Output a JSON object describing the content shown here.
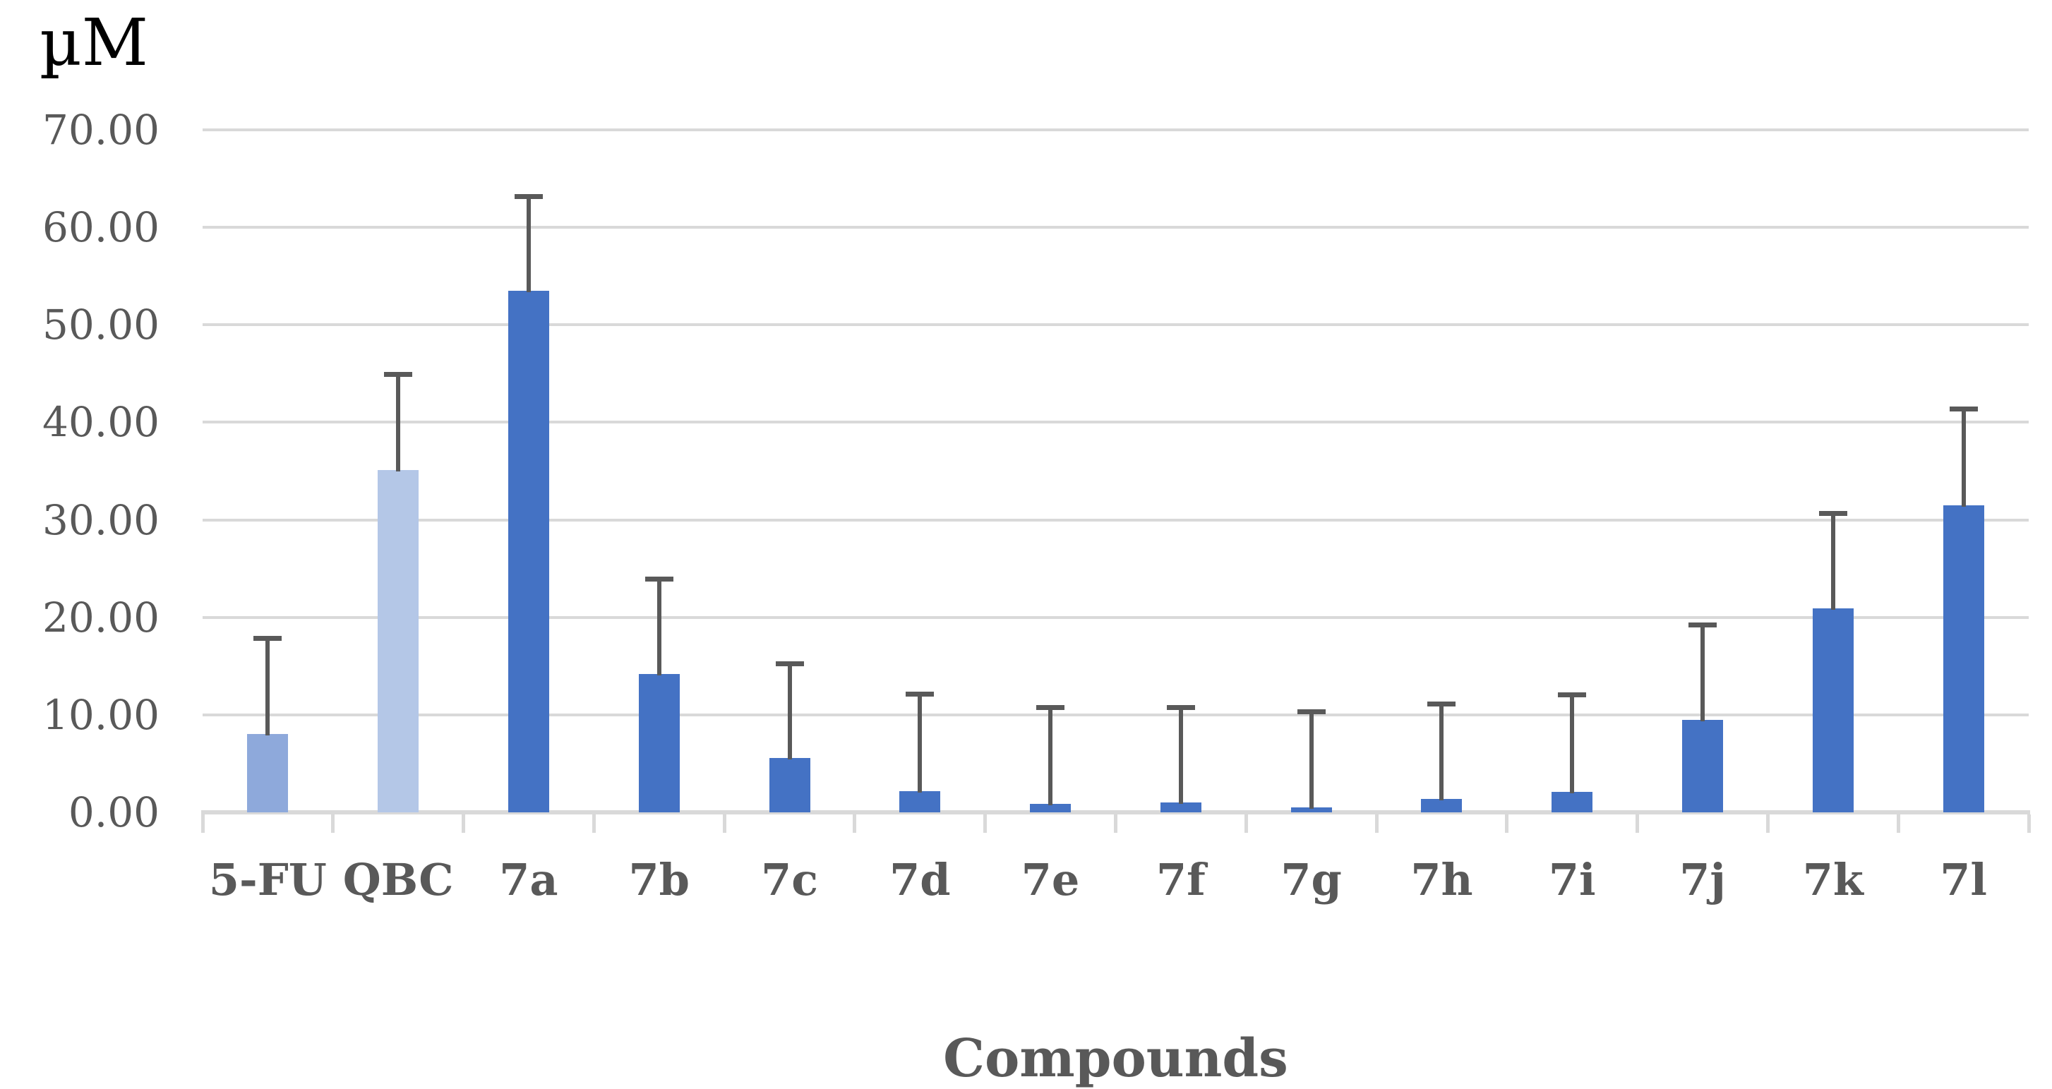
{
  "chart_data": {
    "type": "bar",
    "title": "",
    "ylabel": "µM",
    "xlabel": "Compounds",
    "categories": [
      "5-FU",
      "QBC",
      "7a",
      "7b",
      "7c",
      "7d",
      "7e",
      "7f",
      "7g",
      "7h",
      "7i",
      "7j",
      "7k",
      "7l"
    ],
    "values": [
      8.0,
      35.1,
      53.5,
      14.2,
      5.6,
      2.2,
      0.9,
      1.0,
      0.5,
      1.4,
      2.1,
      9.5,
      20.9,
      31.5
    ],
    "errors_up": [
      10.1,
      10.1,
      9.9,
      10.0,
      9.9,
      10.2,
      10.1,
      10.0,
      10.1,
      10.0,
      10.2,
      10.0,
      10.0,
      10.1
    ],
    "error_bars": "upper-only",
    "bar_styles": [
      "light",
      "lighter",
      "primary",
      "primary",
      "primary",
      "primary",
      "primary",
      "primary",
      "primary",
      "primary",
      "primary",
      "primary",
      "primary",
      "primary"
    ],
    "ytick_labels": [
      "70.00",
      "60.00",
      "50.00",
      "40.00",
      "30.00",
      "20.00",
      "10.00",
      "0.00"
    ],
    "ytick_values": [
      70,
      60,
      50,
      40,
      30,
      20,
      10,
      0
    ],
    "ylim": [
      0,
      70
    ],
    "grid": true,
    "legend": false
  },
  "colors": {
    "primary": "#4472C4",
    "light": "#8EA9DB",
    "lighter": "#B4C7E7",
    "error_bar": "#595959",
    "gridline": "#D9D9D9",
    "axis_line": "#D9D9D9",
    "label_text": "#595959",
    "unit_text": "#000000"
  }
}
